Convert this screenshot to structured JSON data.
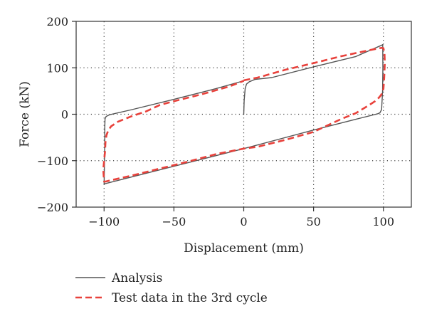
{
  "chart_data": {
    "type": "line",
    "title": "",
    "xlabel": "Displacement (mm)",
    "ylabel": "Force (kN)",
    "xlim": [
      -120,
      120
    ],
    "ylim": [
      -200,
      200
    ],
    "xticks": [
      -100,
      -50,
      0,
      50,
      100
    ],
    "yticks": [
      -200,
      -100,
      0,
      100,
      200
    ],
    "xtick_labels": [
      "−100",
      "−50",
      "0",
      "50",
      "100"
    ],
    "ytick_labels": [
      "−200",
      "−100",
      "0",
      "100",
      "200"
    ],
    "grid": "dotted",
    "legend_position": "bottom-left",
    "series": [
      {
        "name": "Analysis",
        "color": "#555555",
        "style": "solid",
        "x": [
          0,
          0.3,
          1,
          2,
          4,
          8,
          20,
          50,
          80,
          99,
          99.5,
          99.6,
          99.4,
          98.7,
          97.5,
          96,
          80,
          50,
          0,
          -50,
          -100,
          -99.5,
          -99.5,
          -99.3,
          -98.6,
          -97.5,
          -96,
          -80,
          -50,
          -20,
          0
        ],
        "y": [
          0,
          30,
          55,
          65,
          70,
          75,
          79,
          102,
          124,
          149,
          150,
          100,
          50,
          10,
          3,
          1,
          -11,
          -34,
          -74,
          -112,
          -150,
          -60,
          -30,
          -10,
          -5,
          -3,
          -1,
          10,
          32,
          55,
          72
        ]
      },
      {
        "name": "Test data in the 3rd cycle",
        "color": "#e8413b",
        "style": "dashed",
        "x": [
          0,
          10,
          30,
          50,
          70,
          90,
          97,
          99,
          100,
          100.8,
          101,
          100.6,
          100,
          99,
          98,
          96,
          94,
          90,
          80,
          70,
          50,
          30,
          10,
          0,
          -20,
          -40,
          -60,
          -80,
          -95,
          -99,
          -100,
          -100.6,
          -100,
          -99.3,
          -99,
          -98.3,
          -97,
          -95,
          -90,
          -80,
          -70,
          -60,
          -50,
          -30,
          -10,
          0
        ],
        "y": [
          73,
          79,
          96,
          110,
          125,
          138,
          142,
          143,
          142,
          130,
          110,
          80,
          55,
          45,
          40,
          33,
          28,
          20,
          2,
          -10,
          -38,
          -55,
          -70,
          -74,
          -86,
          -102,
          -117,
          -132,
          -142,
          -145,
          -145,
          -120,
          -100,
          -80,
          -60,
          -45,
          -35,
          -26,
          -16,
          -4,
          6,
          20,
          28,
          43,
          60,
          72
        ]
      }
    ]
  }
}
